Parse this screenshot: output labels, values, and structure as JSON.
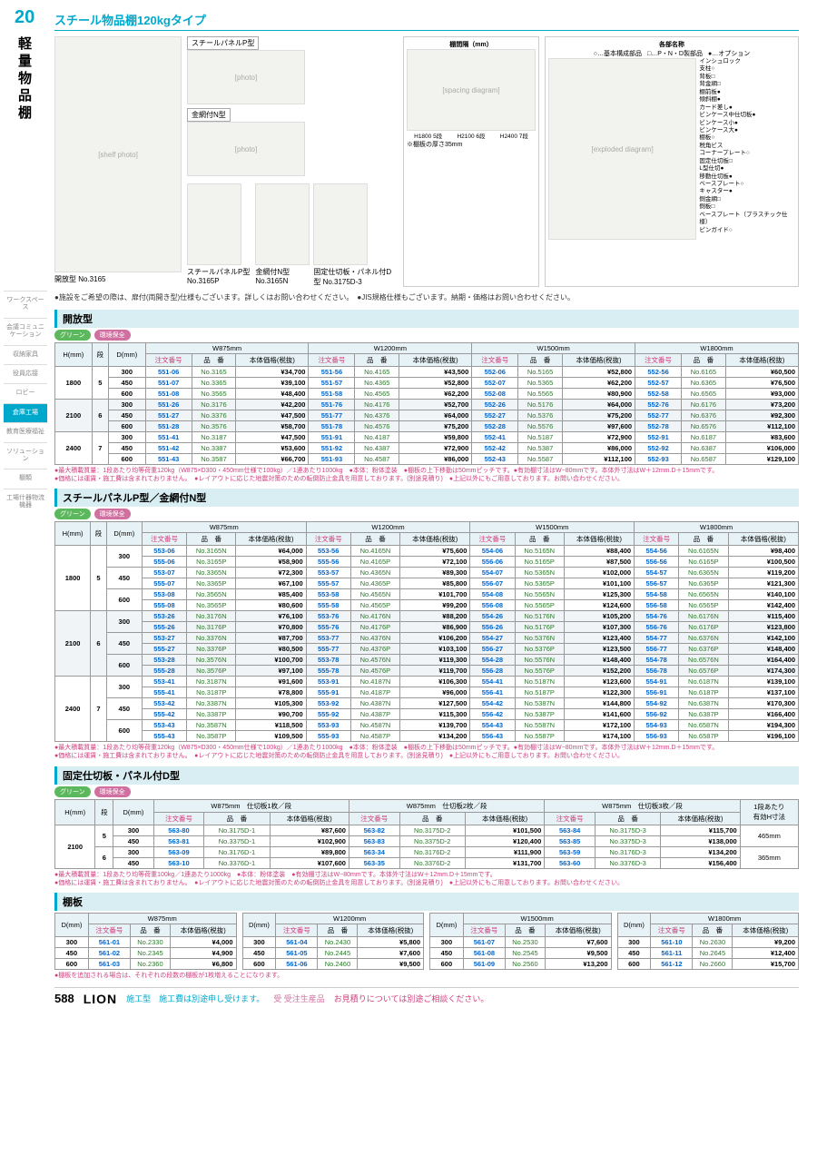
{
  "page": {
    "topNum": "20",
    "sideTitle": "軽量物品棚",
    "bottomNum": "588",
    "brand": "LION"
  },
  "sideNav": [
    "ワークスペース",
    "会議コミュニケーション",
    "収納家具",
    "役員応接",
    "ロビー",
    "倉庫工場",
    "教育医療福祉",
    "ソリューション",
    "棚類",
    "工場什器物流機器"
  ],
  "sideNavActive": 5,
  "titleBar": "スチール物品棚120kgタイプ",
  "imageCaptions": {
    "main": "開放型\nNo.3165",
    "panelP": "スチールパネルP型",
    "meshN": "金網付N型",
    "p2": "スチールパネルP型\nNo.3165P",
    "n2": "金網付N型\nNo.3165N",
    "d2": "固定仕切板・パネル付D型\nNo.3175D-3"
  },
  "diagram": {
    "spacingTitle": "棚間隔（mm）",
    "spacingNote": "※棚板の厚さ35mm",
    "spacingLabels": [
      "H1800 5段",
      "H2100 6段",
      "H2400 7段"
    ],
    "partsTitle": "各部名称",
    "legend": [
      "○…基本構成部品",
      "□…P・N・D製部品",
      "●…オプション"
    ],
    "parts": [
      "インシュロック",
      "支柱○",
      "背板□",
      "背金網□",
      "棚前板●",
      "傾斜棚●",
      "カード差し●",
      "ビンケース中仕切板●",
      "ビンケース小●",
      "ビンケース大●",
      "棚板○",
      "税角ビス",
      "コーナープレート○",
      "固定仕切板□",
      "L型仕切●",
      "移動仕切板●",
      "ベースプレート○",
      "キャスター●",
      "側金網□",
      "側板□",
      "ベースプレート（プラスチック仕様）",
      "ピンガイド○"
    ]
  },
  "noteTop": "●施設をご希望の際は、扉付(両開き型)仕様もございます。詳しくはお問い合わせください。　●JIS規格仕様もございます。納期・価格はお問い合わせください。",
  "hdr": {
    "h": "H(mm)",
    "dan": "段",
    "d": "D(mm)",
    "order": "注文番号",
    "item": "品　番",
    "price": "本体価格(税抜)"
  },
  "widths": [
    "W875mm",
    "W1200mm",
    "W1500mm",
    "W1800mm"
  ],
  "section1": {
    "title": "開放型",
    "rows": [
      {
        "h": "1800",
        "dan": "5",
        "d": "300",
        "c": [
          [
            "551-06",
            "No.3165",
            "¥34,700"
          ],
          [
            "551-56",
            "No.4165",
            "¥43,500"
          ],
          [
            "552-06",
            "No.5165",
            "¥52,800"
          ],
          [
            "552-56",
            "No.6165",
            "¥60,500"
          ]
        ]
      },
      {
        "h": "",
        "dan": "",
        "d": "450",
        "c": [
          [
            "551-07",
            "No.3365",
            "¥39,100"
          ],
          [
            "551-57",
            "No.4365",
            "¥52,800"
          ],
          [
            "552-07",
            "No.5365",
            "¥62,200"
          ],
          [
            "552-57",
            "No.6365",
            "¥76,500"
          ]
        ]
      },
      {
        "h": "",
        "dan": "",
        "d": "600",
        "c": [
          [
            "551-08",
            "No.3565",
            "¥48,400"
          ],
          [
            "551-58",
            "No.4565",
            "¥62,200"
          ],
          [
            "552-08",
            "No.5565",
            "¥80,900"
          ],
          [
            "552-58",
            "No.6565",
            "¥93,000"
          ]
        ]
      },
      {
        "h": "2100",
        "dan": "6",
        "d": "300",
        "c": [
          [
            "551-26",
            "No.3176",
            "¥42,200"
          ],
          [
            "551-76",
            "No.4176",
            "¥52,700"
          ],
          [
            "552-26",
            "No.5176",
            "¥64,000"
          ],
          [
            "552-76",
            "No.6176",
            "¥73,200"
          ]
        ]
      },
      {
        "h": "",
        "dan": "",
        "d": "450",
        "c": [
          [
            "551-27",
            "No.3376",
            "¥47,500"
          ],
          [
            "551-77",
            "No.4376",
            "¥64,000"
          ],
          [
            "552-27",
            "No.5376",
            "¥75,200"
          ],
          [
            "552-77",
            "No.6376",
            "¥92,300"
          ]
        ]
      },
      {
        "h": "",
        "dan": "",
        "d": "600",
        "c": [
          [
            "551-28",
            "No.3576",
            "¥58,700"
          ],
          [
            "551-78",
            "No.4576",
            "¥75,200"
          ],
          [
            "552-28",
            "No.5576",
            "¥97,600"
          ],
          [
            "552-78",
            "No.6576",
            "¥112,100"
          ]
        ]
      },
      {
        "h": "2400",
        "dan": "7",
        "d": "300",
        "c": [
          [
            "551-41",
            "No.3187",
            "¥47,500"
          ],
          [
            "551-91",
            "No.4187",
            "¥59,800"
          ],
          [
            "552-41",
            "No.5187",
            "¥72,900"
          ],
          [
            "552-91",
            "No.6187",
            "¥83,600"
          ]
        ]
      },
      {
        "h": "",
        "dan": "",
        "d": "450",
        "c": [
          [
            "551-42",
            "No.3387",
            "¥53,600"
          ],
          [
            "551-92",
            "No.4387",
            "¥72,900"
          ],
          [
            "552-42",
            "No.5387",
            "¥86,000"
          ],
          [
            "552-92",
            "No.6387",
            "¥106,000"
          ]
        ]
      },
      {
        "h": "",
        "dan": "",
        "d": "600",
        "c": [
          [
            "551-43",
            "No.3587",
            "¥66,700"
          ],
          [
            "551-93",
            "No.4587",
            "¥86,000"
          ],
          [
            "552-43",
            "No.5587",
            "¥112,100"
          ],
          [
            "552-93",
            "No.6587",
            "¥129,100"
          ]
        ]
      }
    ],
    "notes": "●最大積載質量：1段あたり均等荷重120kg（W875×D300・450mm仕様で100kg）／1連あたり1000kg　●本体：粉体塗装　●棚板の上下移動は50mmピッチです。●有効棚寸法はW−80mmです。本体外寸法はW＋12mm.D＋15mmです。\n●価格には運賃・施工費は含まれておりません。　●レイアウトに応じた地震対策のための転倒防止金具を用意しております。(別途見積り)　●上記以外にもご用意しております。お問い合わせください。"
  },
  "section2": {
    "title": "スチールパネルP型／金網付N型",
    "rows": [
      {
        "h": "1800",
        "dan": "5",
        "d": "300",
        "sub": [
          [
            [
              "553-06",
              "No.3165N",
              "¥64,000"
            ],
            [
              "553-56",
              "No.4165N",
              "¥75,600"
            ],
            [
              "554-06",
              "No.5165N",
              "¥88,400"
            ],
            [
              "554-56",
              "No.6165N",
              "¥98,400"
            ]
          ],
          [
            [
              "555-06",
              "No.3165P",
              "¥58,900"
            ],
            [
              "555-56",
              "No.4165P",
              "¥72,100"
            ],
            [
              "556-06",
              "No.5165P",
              "¥87,500"
            ],
            [
              "556-56",
              "No.6165P",
              "¥100,500"
            ]
          ]
        ]
      },
      {
        "h": "",
        "dan": "",
        "d": "450",
        "sub": [
          [
            [
              "553-07",
              "No.3365N",
              "¥72,300"
            ],
            [
              "553-57",
              "No.4365N",
              "¥89,300"
            ],
            [
              "554-07",
              "No.5365N",
              "¥102,000"
            ],
            [
              "554-57",
              "No.6365N",
              "¥119,200"
            ]
          ],
          [
            [
              "555-07",
              "No.3365P",
              "¥67,100"
            ],
            [
              "555-57",
              "No.4365P",
              "¥85,800"
            ],
            [
              "556-07",
              "No.5365P",
              "¥101,100"
            ],
            [
              "556-57",
              "No.6365P",
              "¥121,300"
            ]
          ]
        ]
      },
      {
        "h": "",
        "dan": "",
        "d": "600",
        "sub": [
          [
            [
              "553-08",
              "No.3565N",
              "¥85,400"
            ],
            [
              "553-58",
              "No.4565N",
              "¥101,700"
            ],
            [
              "554-08",
              "No.5565N",
              "¥125,300"
            ],
            [
              "554-58",
              "No.6565N",
              "¥140,100"
            ]
          ],
          [
            [
              "555-08",
              "No.3565P",
              "¥80,600"
            ],
            [
              "555-58",
              "No.4565P",
              "¥99,200"
            ],
            [
              "556-08",
              "No.5565P",
              "¥124,600"
            ],
            [
              "556-58",
              "No.6565P",
              "¥142,400"
            ]
          ]
        ]
      },
      {
        "h": "2100",
        "dan": "6",
        "d": "300",
        "sub": [
          [
            [
              "553-26",
              "No.3176N",
              "¥76,100"
            ],
            [
              "553-76",
              "No.4176N",
              "¥88,200"
            ],
            [
              "554-26",
              "No.5176N",
              "¥105,200"
            ],
            [
              "554-76",
              "No.6176N",
              "¥115,400"
            ]
          ],
          [
            [
              "555-26",
              "No.3176P",
              "¥70,800"
            ],
            [
              "555-76",
              "No.4176P",
              "¥86,900"
            ],
            [
              "556-26",
              "No.5176P",
              "¥107,300"
            ],
            [
              "556-76",
              "No.6176P",
              "¥123,800"
            ]
          ]
        ]
      },
      {
        "h": "",
        "dan": "",
        "d": "450",
        "sub": [
          [
            [
              "553-27",
              "No.3376N",
              "¥87,700"
            ],
            [
              "553-77",
              "No.4376N",
              "¥106,200"
            ],
            [
              "554-27",
              "No.5376N",
              "¥123,400"
            ],
            [
              "554-77",
              "No.6376N",
              "¥142,100"
            ]
          ],
          [
            [
              "555-27",
              "No.3376P",
              "¥80,500"
            ],
            [
              "555-77",
              "No.4376P",
              "¥103,100"
            ],
            [
              "556-27",
              "No.5376P",
              "¥123,500"
            ],
            [
              "556-77",
              "No.6376P",
              "¥148,400"
            ]
          ]
        ]
      },
      {
        "h": "",
        "dan": "",
        "d": "600",
        "sub": [
          [
            [
              "553-28",
              "No.3576N",
              "¥100,700"
            ],
            [
              "553-78",
              "No.4576N",
              "¥119,300"
            ],
            [
              "554-28",
              "No.5576N",
              "¥148,400"
            ],
            [
              "554-78",
              "No.6576N",
              "¥164,400"
            ]
          ],
          [
            [
              "555-28",
              "No.3576P",
              "¥97,100"
            ],
            [
              "555-78",
              "No.4576P",
              "¥119,700"
            ],
            [
              "556-28",
              "No.5576P",
              "¥152,200"
            ],
            [
              "556-78",
              "No.6576P",
              "¥174,300"
            ]
          ]
        ]
      },
      {
        "h": "2400",
        "dan": "7",
        "d": "300",
        "sub": [
          [
            [
              "553-41",
              "No.3187N",
              "¥91,600"
            ],
            [
              "553-91",
              "No.4187N",
              "¥106,300"
            ],
            [
              "554-41",
              "No.5187N",
              "¥123,600"
            ],
            [
              "554-91",
              "No.6187N",
              "¥139,100"
            ]
          ],
          [
            [
              "555-41",
              "No.3187P",
              "¥78,800"
            ],
            [
              "555-91",
              "No.4187P",
              "¥96,000"
            ],
            [
              "556-41",
              "No.5187P",
              "¥122,300"
            ],
            [
              "556-91",
              "No.6187P",
              "¥137,100"
            ]
          ]
        ]
      },
      {
        "h": "",
        "dan": "",
        "d": "450",
        "sub": [
          [
            [
              "553-42",
              "No.3387N",
              "¥105,300"
            ],
            [
              "553-92",
              "No.4387N",
              "¥127,500"
            ],
            [
              "554-42",
              "No.5387N",
              "¥144,800"
            ],
            [
              "554-92",
              "No.6387N",
              "¥170,300"
            ]
          ],
          [
            [
              "555-42",
              "No.3387P",
              "¥90,700"
            ],
            [
              "555-92",
              "No.4387P",
              "¥115,300"
            ],
            [
              "556-42",
              "No.5387P",
              "¥141,600"
            ],
            [
              "556-92",
              "No.6387P",
              "¥166,400"
            ]
          ]
        ]
      },
      {
        "h": "",
        "dan": "",
        "d": "600",
        "sub": [
          [
            [
              "553-43",
              "No.3587N",
              "¥118,500"
            ],
            [
              "553-93",
              "No.4587N",
              "¥139,700"
            ],
            [
              "554-43",
              "No.5587N",
              "¥172,100"
            ],
            [
              "554-93",
              "No.6587N",
              "¥194,300"
            ]
          ],
          [
            [
              "555-43",
              "No.3587P",
              "¥109,500"
            ],
            [
              "555-93",
              "No.4587P",
              "¥134,200"
            ],
            [
              "556-43",
              "No.5587P",
              "¥174,100"
            ],
            [
              "556-93",
              "No.6587P",
              "¥196,100"
            ]
          ]
        ]
      }
    ],
    "notes": "●最大積載質量：1段あたり均等荷重120kg（W875×D300・450mm仕様で100kg）／1連あたり1000kg　●本体：粉体塗装　●棚板の上下移動は50mmピッチです。●有効棚寸法はW−80mmです。本体外寸法はW＋12mm.D＋15mmです。\n●価格には運賃・施工費は含まれておりません。　●レイアウトに応じた地震対策のための転倒防止金具を用意しております。(別途見積り)　●上記以外にもご用意しております。お問い合わせください。"
  },
  "section3": {
    "title": "固定仕切板・パネル付D型",
    "widths": [
      "W875mm　仕切板1枚／段",
      "W875mm　仕切板2枚／段",
      "W875mm　仕切板3枚／段"
    ],
    "extraHdr": "1段あたり\n有効H寸法",
    "rows": [
      {
        "h": "2100",
        "dan": "5",
        "d": "300",
        "c": [
          [
            "563-80",
            "No.3175D-1",
            "¥87,600"
          ],
          [
            "563-82",
            "No.3175D-2",
            "¥101,500"
          ],
          [
            "563-84",
            "No.3175D-3",
            "¥115,700"
          ]
        ],
        "ext": "465mm"
      },
      {
        "h": "",
        "dan": "",
        "d": "450",
        "c": [
          [
            "563-81",
            "No.3375D-1",
            "¥102,900"
          ],
          [
            "563-83",
            "No.3375D-2",
            "¥120,400"
          ],
          [
            "563-85",
            "No.3375D-3",
            "¥138,000"
          ]
        ],
        "ext": ""
      },
      {
        "h": "",
        "dan": "6",
        "d": "300",
        "c": [
          [
            "563-09",
            "No.3176D-1",
            "¥89,800"
          ],
          [
            "563-34",
            "No.3176D-2",
            "¥111,900"
          ],
          [
            "563-59",
            "No.3176D-3",
            "¥134,200"
          ]
        ],
        "ext": "365mm"
      },
      {
        "h": "",
        "dan": "",
        "d": "450",
        "c": [
          [
            "563-10",
            "No.3376D-1",
            "¥107,600"
          ],
          [
            "563-35",
            "No.3376D-2",
            "¥131,700"
          ],
          [
            "563-60",
            "No.3376D-3",
            "¥156,400"
          ]
        ],
        "ext": ""
      }
    ],
    "notes": "●最大積載質量：1段あたり均等荷重100kg／1連あたり1000kg　●本体：粉体塗装　●有効棚寸法はW−80mmです。本体外寸法はW＋12mm.D＋15mmです。\n●価格には運賃・施工費は含まれておりません。　●レイアウトに応じた地震対策のための転倒防止金具を用意しております。(別途見積り)　●上記以外にもご用意しております。お問い合わせください。"
  },
  "section4": {
    "title": "棚板",
    "tables": [
      {
        "w": "W875mm",
        "rows": [
          [
            "300",
            "561-01",
            "No.2330",
            "¥4,000"
          ],
          [
            "450",
            "561-02",
            "No.2345",
            "¥4,900"
          ],
          [
            "600",
            "561-03",
            "No.2360",
            "¥6,800"
          ]
        ]
      },
      {
        "w": "W1200mm",
        "rows": [
          [
            "300",
            "561-04",
            "No.2430",
            "¥5,800"
          ],
          [
            "450",
            "561-05",
            "No.2445",
            "¥7,600"
          ],
          [
            "600",
            "561-06",
            "No.2460",
            "¥9,500"
          ]
        ]
      },
      {
        "w": "W1500mm",
        "rows": [
          [
            "300",
            "561-07",
            "No.2530",
            "¥7,600"
          ],
          [
            "450",
            "561-08",
            "No.2545",
            "¥9,500"
          ],
          [
            "600",
            "561-09",
            "No.2560",
            "¥13,200"
          ]
        ]
      },
      {
        "w": "W1800mm",
        "rows": [
          [
            "300",
            "561-10",
            "No.2630",
            "¥9,200"
          ],
          [
            "450",
            "561-11",
            "No.2645",
            "¥12,400"
          ],
          [
            "600",
            "561-12",
            "No.2660",
            "¥15,700"
          ]
        ]
      }
    ],
    "notes": "●棚板を追加される場合は、それぞれの段数の棚板が1枚増えることになります。"
  },
  "footer": {
    "kouji": "施工型　施工費は別途申し受けます。",
    "juchu": "受 受注生産品",
    "est": "お見積りについては別途ご相談ください。"
  }
}
